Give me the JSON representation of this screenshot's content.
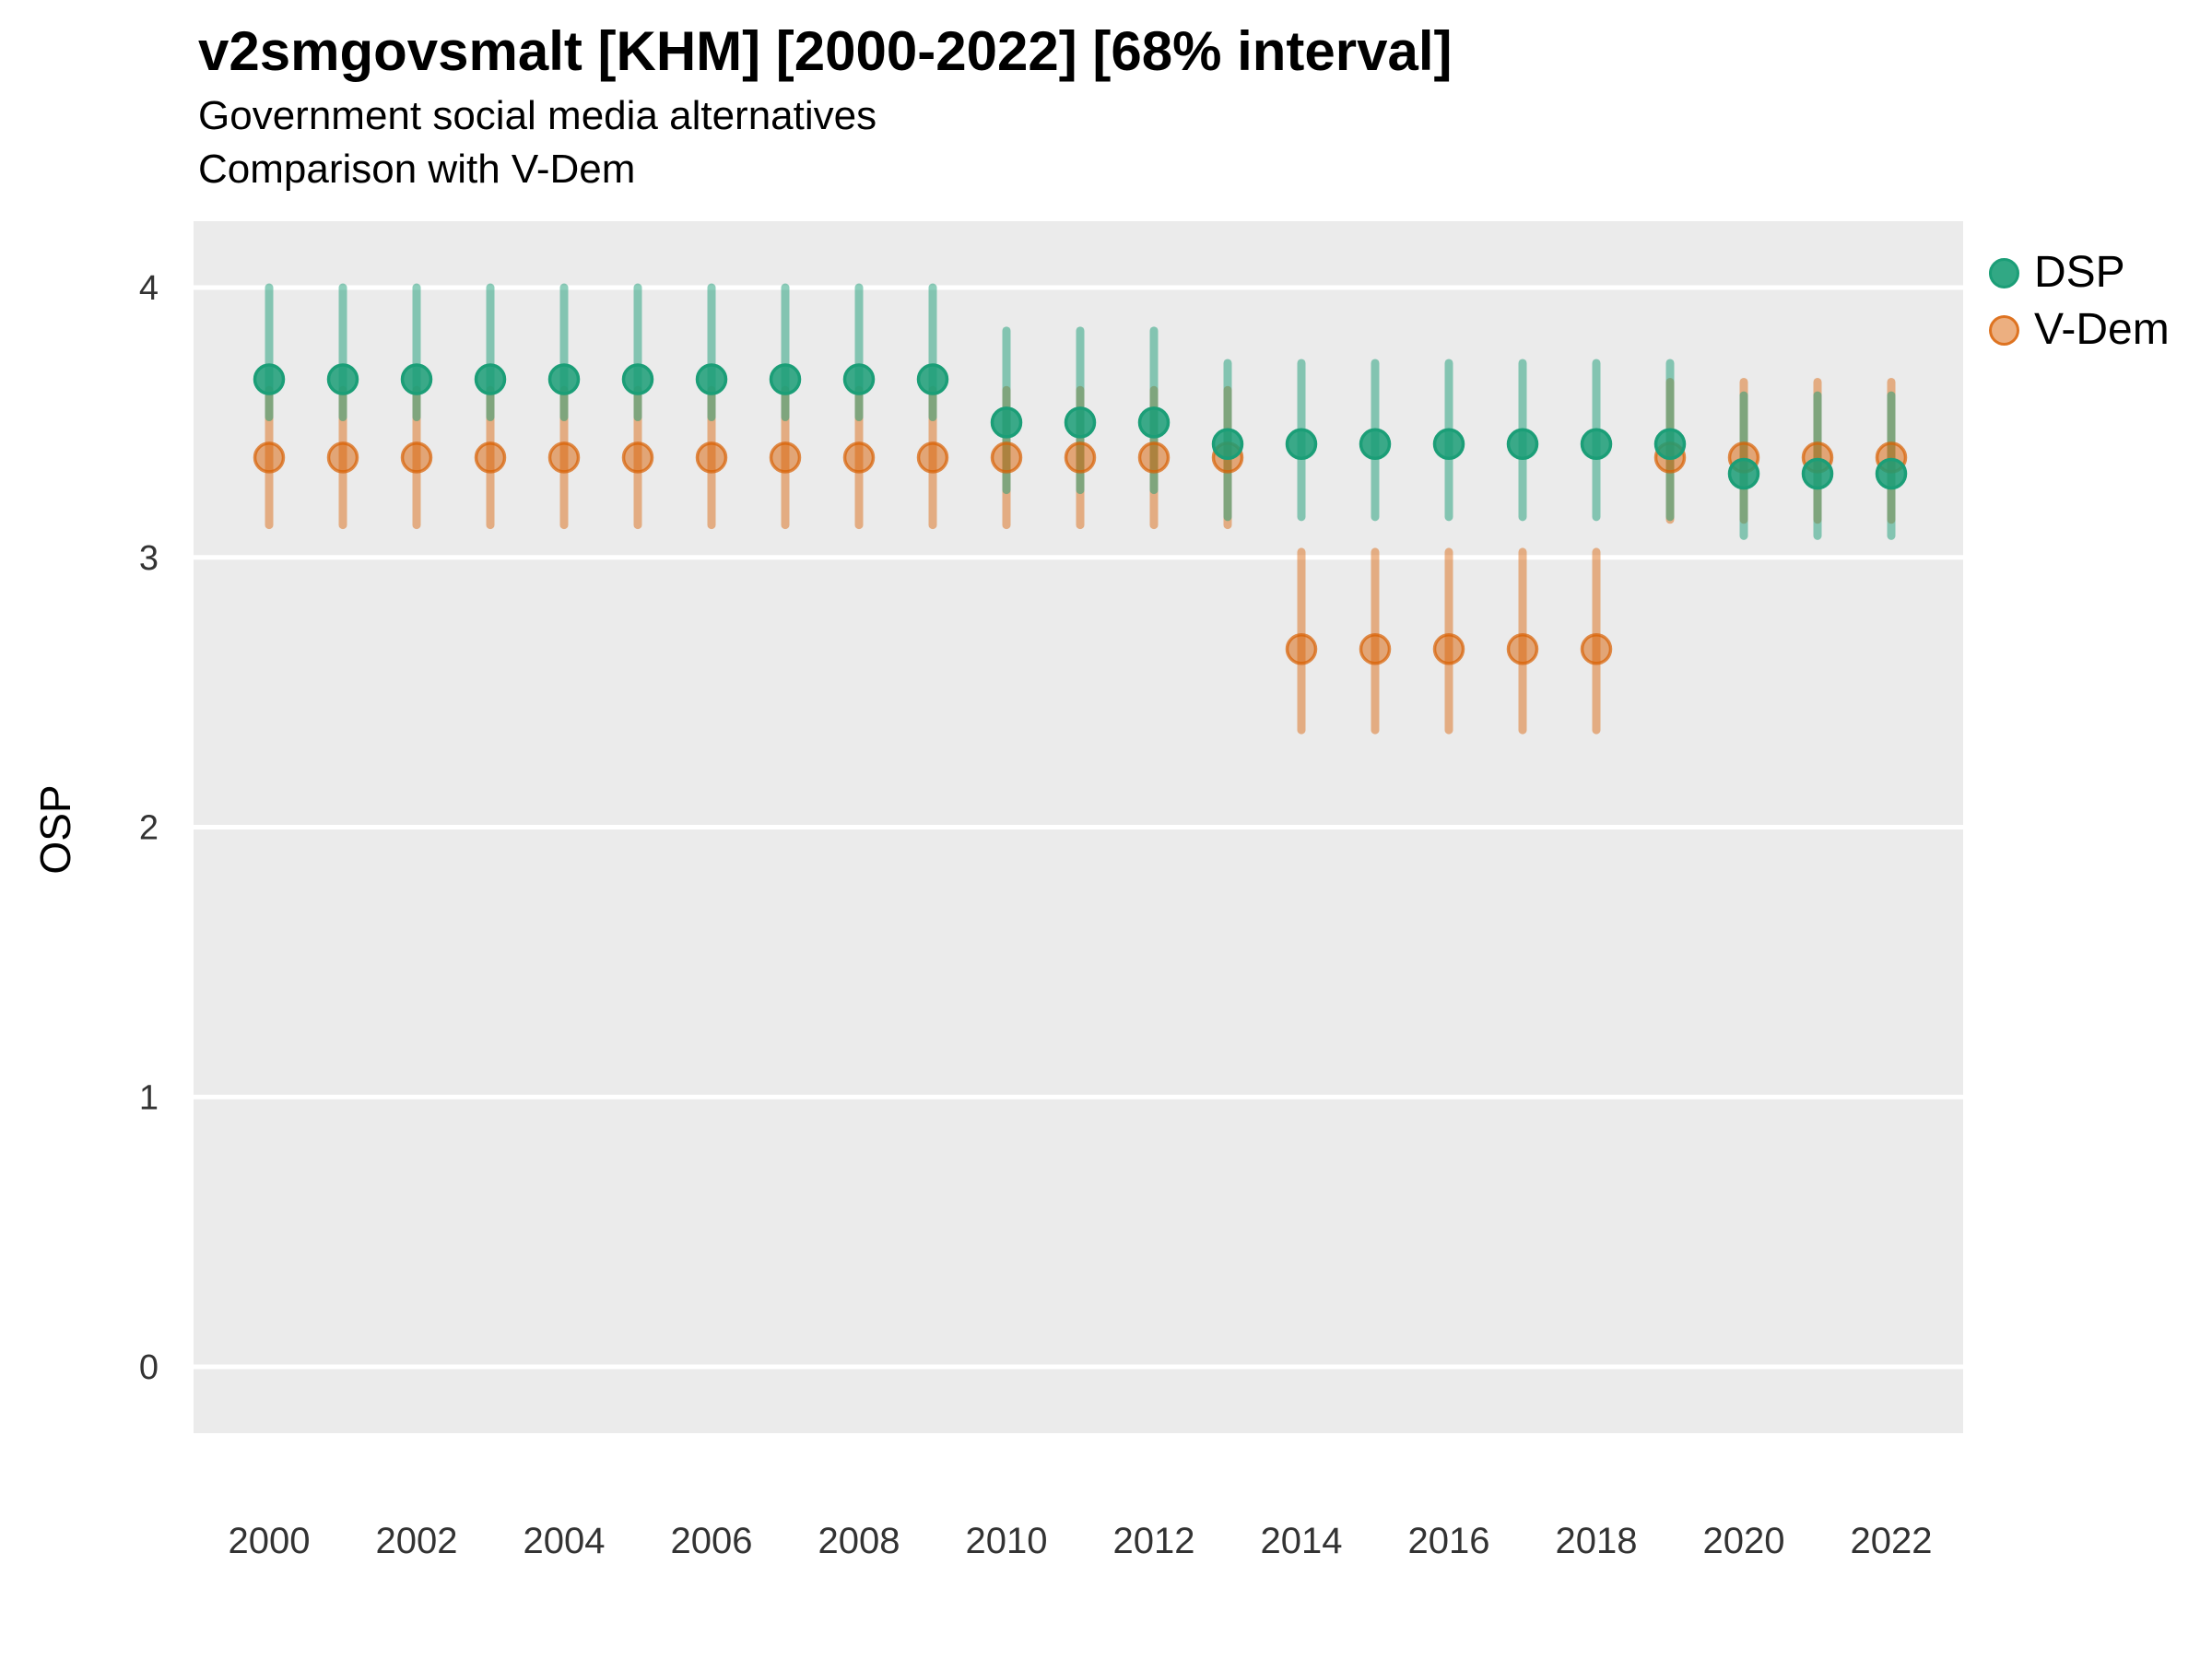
{
  "chart_data": {
    "type": "scatter",
    "subtype": "pointrange",
    "title": "v2smgovsmalt [KHM] [2000-2022] [68% interval]",
    "subtitle_lines": [
      "Government social media alternatives",
      "Comparison with V-Dem"
    ],
    "ylabel": "OSP",
    "xlabel": "",
    "interval_label": "68% interval",
    "country": "KHM",
    "grid": "major horizontal white gridlines on grey panel",
    "legend_position": "top-right",
    "ylim": [
      -0.25,
      4.25
    ],
    "yticks": [
      4,
      3,
      2,
      1,
      0
    ],
    "xticks": [
      2000,
      2002,
      2004,
      2006,
      2008,
      2010,
      2012,
      2014,
      2016,
      2018,
      2020,
      2022
    ],
    "x": [
      2000,
      2001,
      2002,
      2003,
      2004,
      2005,
      2006,
      2007,
      2008,
      2009,
      2010,
      2011,
      2012,
      2013,
      2014,
      2015,
      2016,
      2017,
      2018,
      2019,
      2020,
      2021,
      2022
    ],
    "series": [
      {
        "name": "DSP",
        "color": "#1B9E77",
        "values": [
          3.66,
          3.66,
          3.66,
          3.66,
          3.66,
          3.66,
          3.66,
          3.66,
          3.66,
          3.66,
          3.5,
          3.5,
          3.5,
          3.42,
          3.42,
          3.42,
          3.42,
          3.42,
          3.42,
          3.42,
          3.31,
          3.31,
          3.31
        ],
        "lo": [
          3.52,
          3.52,
          3.52,
          3.52,
          3.52,
          3.52,
          3.52,
          3.52,
          3.52,
          3.52,
          3.25,
          3.25,
          3.25,
          3.15,
          3.15,
          3.15,
          3.15,
          3.15,
          3.15,
          3.15,
          3.08,
          3.08,
          3.08
        ],
        "hi": [
          4.0,
          4.0,
          4.0,
          4.0,
          4.0,
          4.0,
          4.0,
          4.0,
          4.0,
          4.0,
          3.84,
          3.84,
          3.84,
          3.72,
          3.72,
          3.72,
          3.72,
          3.72,
          3.72,
          3.72,
          3.6,
          3.6,
          3.6
        ]
      },
      {
        "name": "V-Dem",
        "color": "#D95F02",
        "values": [
          3.37,
          3.37,
          3.37,
          3.37,
          3.37,
          3.37,
          3.37,
          3.37,
          3.37,
          3.37,
          3.37,
          3.37,
          3.37,
          3.37,
          2.66,
          2.66,
          2.66,
          2.66,
          2.66,
          3.37,
          3.37,
          3.37,
          3.37
        ],
        "lo": [
          3.12,
          3.12,
          3.12,
          3.12,
          3.12,
          3.12,
          3.12,
          3.12,
          3.12,
          3.12,
          3.12,
          3.12,
          3.12,
          3.12,
          2.36,
          2.36,
          2.36,
          2.36,
          2.36,
          3.14,
          3.14,
          3.14,
          3.14
        ],
        "hi": [
          3.62,
          3.62,
          3.62,
          3.62,
          3.62,
          3.62,
          3.62,
          3.62,
          3.62,
          3.62,
          3.62,
          3.62,
          3.62,
          3.62,
          3.02,
          3.02,
          3.02,
          3.02,
          3.02,
          3.65,
          3.65,
          3.65,
          3.65
        ]
      }
    ],
    "panel_background": "#EBEBEB",
    "gridline_color": "#FFFFFF",
    "axis_text_color": "#333333"
  }
}
